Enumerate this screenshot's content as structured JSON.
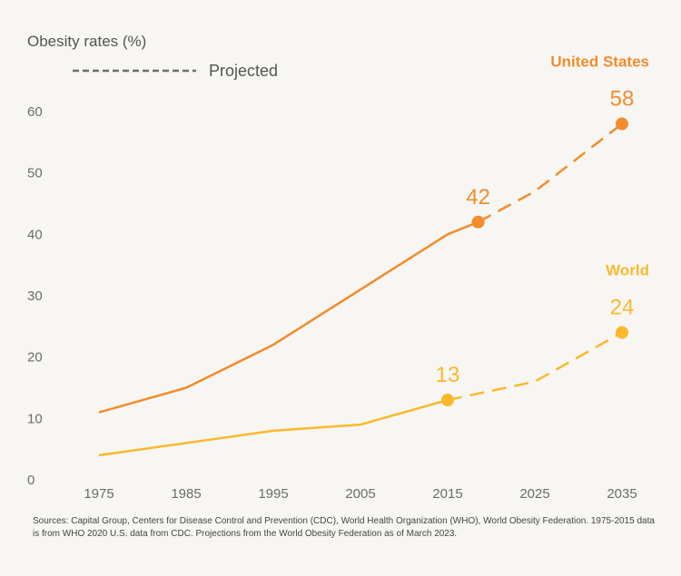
{
  "chart_data": {
    "type": "line",
    "ylabel": "Obesity rates (%)",
    "ylim": [
      0,
      60
    ],
    "yticks": [
      0,
      10,
      20,
      30,
      40,
      50,
      60
    ],
    "x": [
      1975,
      1985,
      1995,
      2005,
      2015,
      2025,
      2035
    ],
    "xtick_labels": [
      "1975",
      "1985",
      "1995",
      "2005",
      "2015",
      "2025",
      "2035"
    ],
    "legend": {
      "projected_label": "Projected",
      "placement": "top-left"
    },
    "series": [
      {
        "name": "United States",
        "color": "#f28c2c",
        "actual": [
          [
            1975,
            11
          ],
          [
            1985,
            15
          ],
          [
            1995,
            22
          ],
          [
            2005,
            31
          ],
          [
            2015,
            40
          ],
          [
            2018.5,
            42
          ]
        ],
        "projected": [
          [
            2018.5,
            42
          ],
          [
            2025,
            47
          ],
          [
            2035,
            58
          ]
        ],
        "markers": [
          {
            "x": 2018.5,
            "y": 42,
            "label": "42"
          },
          {
            "x": 2035,
            "y": 58,
            "label": "58"
          }
        ]
      },
      {
        "name": "World",
        "color": "#fbb82c",
        "actual": [
          [
            1975,
            4
          ],
          [
            1985,
            6
          ],
          [
            1995,
            8
          ],
          [
            2005,
            9
          ],
          [
            2015,
            13
          ]
        ],
        "projected": [
          [
            2015,
            13
          ],
          [
            2025,
            16
          ],
          [
            2035,
            24
          ]
        ],
        "markers": [
          {
            "x": 2015,
            "y": 13,
            "label": "13"
          },
          {
            "x": 2035,
            "y": 24,
            "label": "24"
          }
        ]
      }
    ]
  },
  "sources": "Sources: Capital Group, Centers for Disease Control and Prevention (CDC), World Health Organization (WHO), World Obesity Federation. 1975-2015 data is from WHO 2020 U.S. data from CDC. Projections from the World Obesity Federation as of March 2023."
}
